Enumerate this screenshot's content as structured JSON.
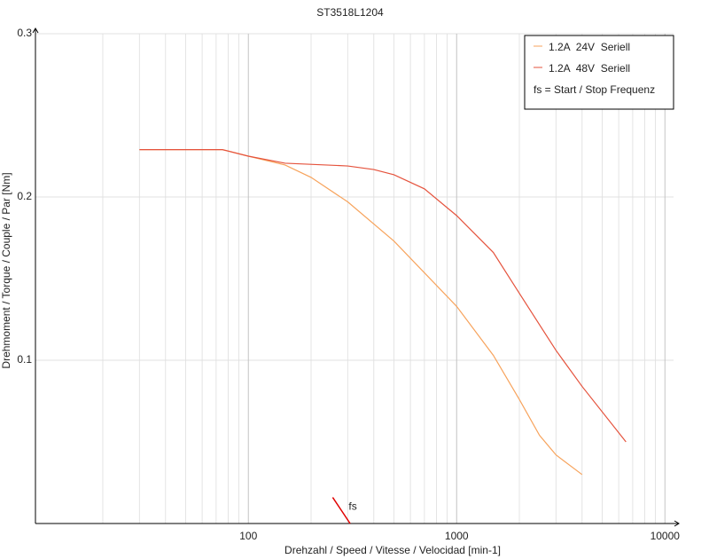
{
  "chart_data": {
    "type": "line",
    "title": "ST3518L1204",
    "xlabel": "Drehzahl / Speed / Vitesse / Velocidad [min-1]",
    "ylabel": "Drehmoment / Torque / Couple / Par [Nm]",
    "xscale": "log",
    "xlim": [
      9.5,
      11000
    ],
    "ylim": [
      0,
      0.3
    ],
    "xticks": [
      100,
      1000,
      10000
    ],
    "xminor": [
      20,
      30,
      40,
      50,
      60,
      70,
      80,
      90,
      200,
      300,
      400,
      500,
      600,
      700,
      800,
      900,
      2000,
      3000,
      4000,
      5000,
      6000,
      7000,
      8000,
      9000
    ],
    "yticks": [
      0.1,
      0.2,
      0.3
    ],
    "grid": true,
    "legend": "upper right",
    "series": [
      {
        "name": "1.2A  24V  Seriell",
        "color": "#f7a35c",
        "x": [
          30,
          75,
          100,
          150,
          200,
          300,
          500,
          1000,
          1500,
          2000,
          2500,
          3000,
          4000
        ],
        "values": [
          0.229,
          0.229,
          0.225,
          0.2196,
          0.212,
          0.197,
          0.173,
          0.133,
          0.103,
          0.076,
          0.054,
          0.042,
          0.03
        ]
      },
      {
        "name": "1.2A  48V  Seriell",
        "color": "#e5533d",
        "x": [
          30,
          75,
          100,
          150,
          300,
          400,
          500,
          700,
          1000,
          1500,
          2000,
          3000,
          4000,
          6500
        ],
        "values": [
          0.229,
          0.229,
          0.225,
          0.2207,
          0.219,
          0.2168,
          0.2136,
          0.205,
          0.1886,
          0.166,
          0.141,
          0.106,
          0.084,
          0.05
        ]
      }
    ],
    "annotation": {
      "label": "fs",
      "legend_text": "fs = Start / Stop Frequenz",
      "color": "#e00000",
      "x": [
        254,
        308
      ],
      "y": [
        0.016,
        0
      ]
    }
  }
}
